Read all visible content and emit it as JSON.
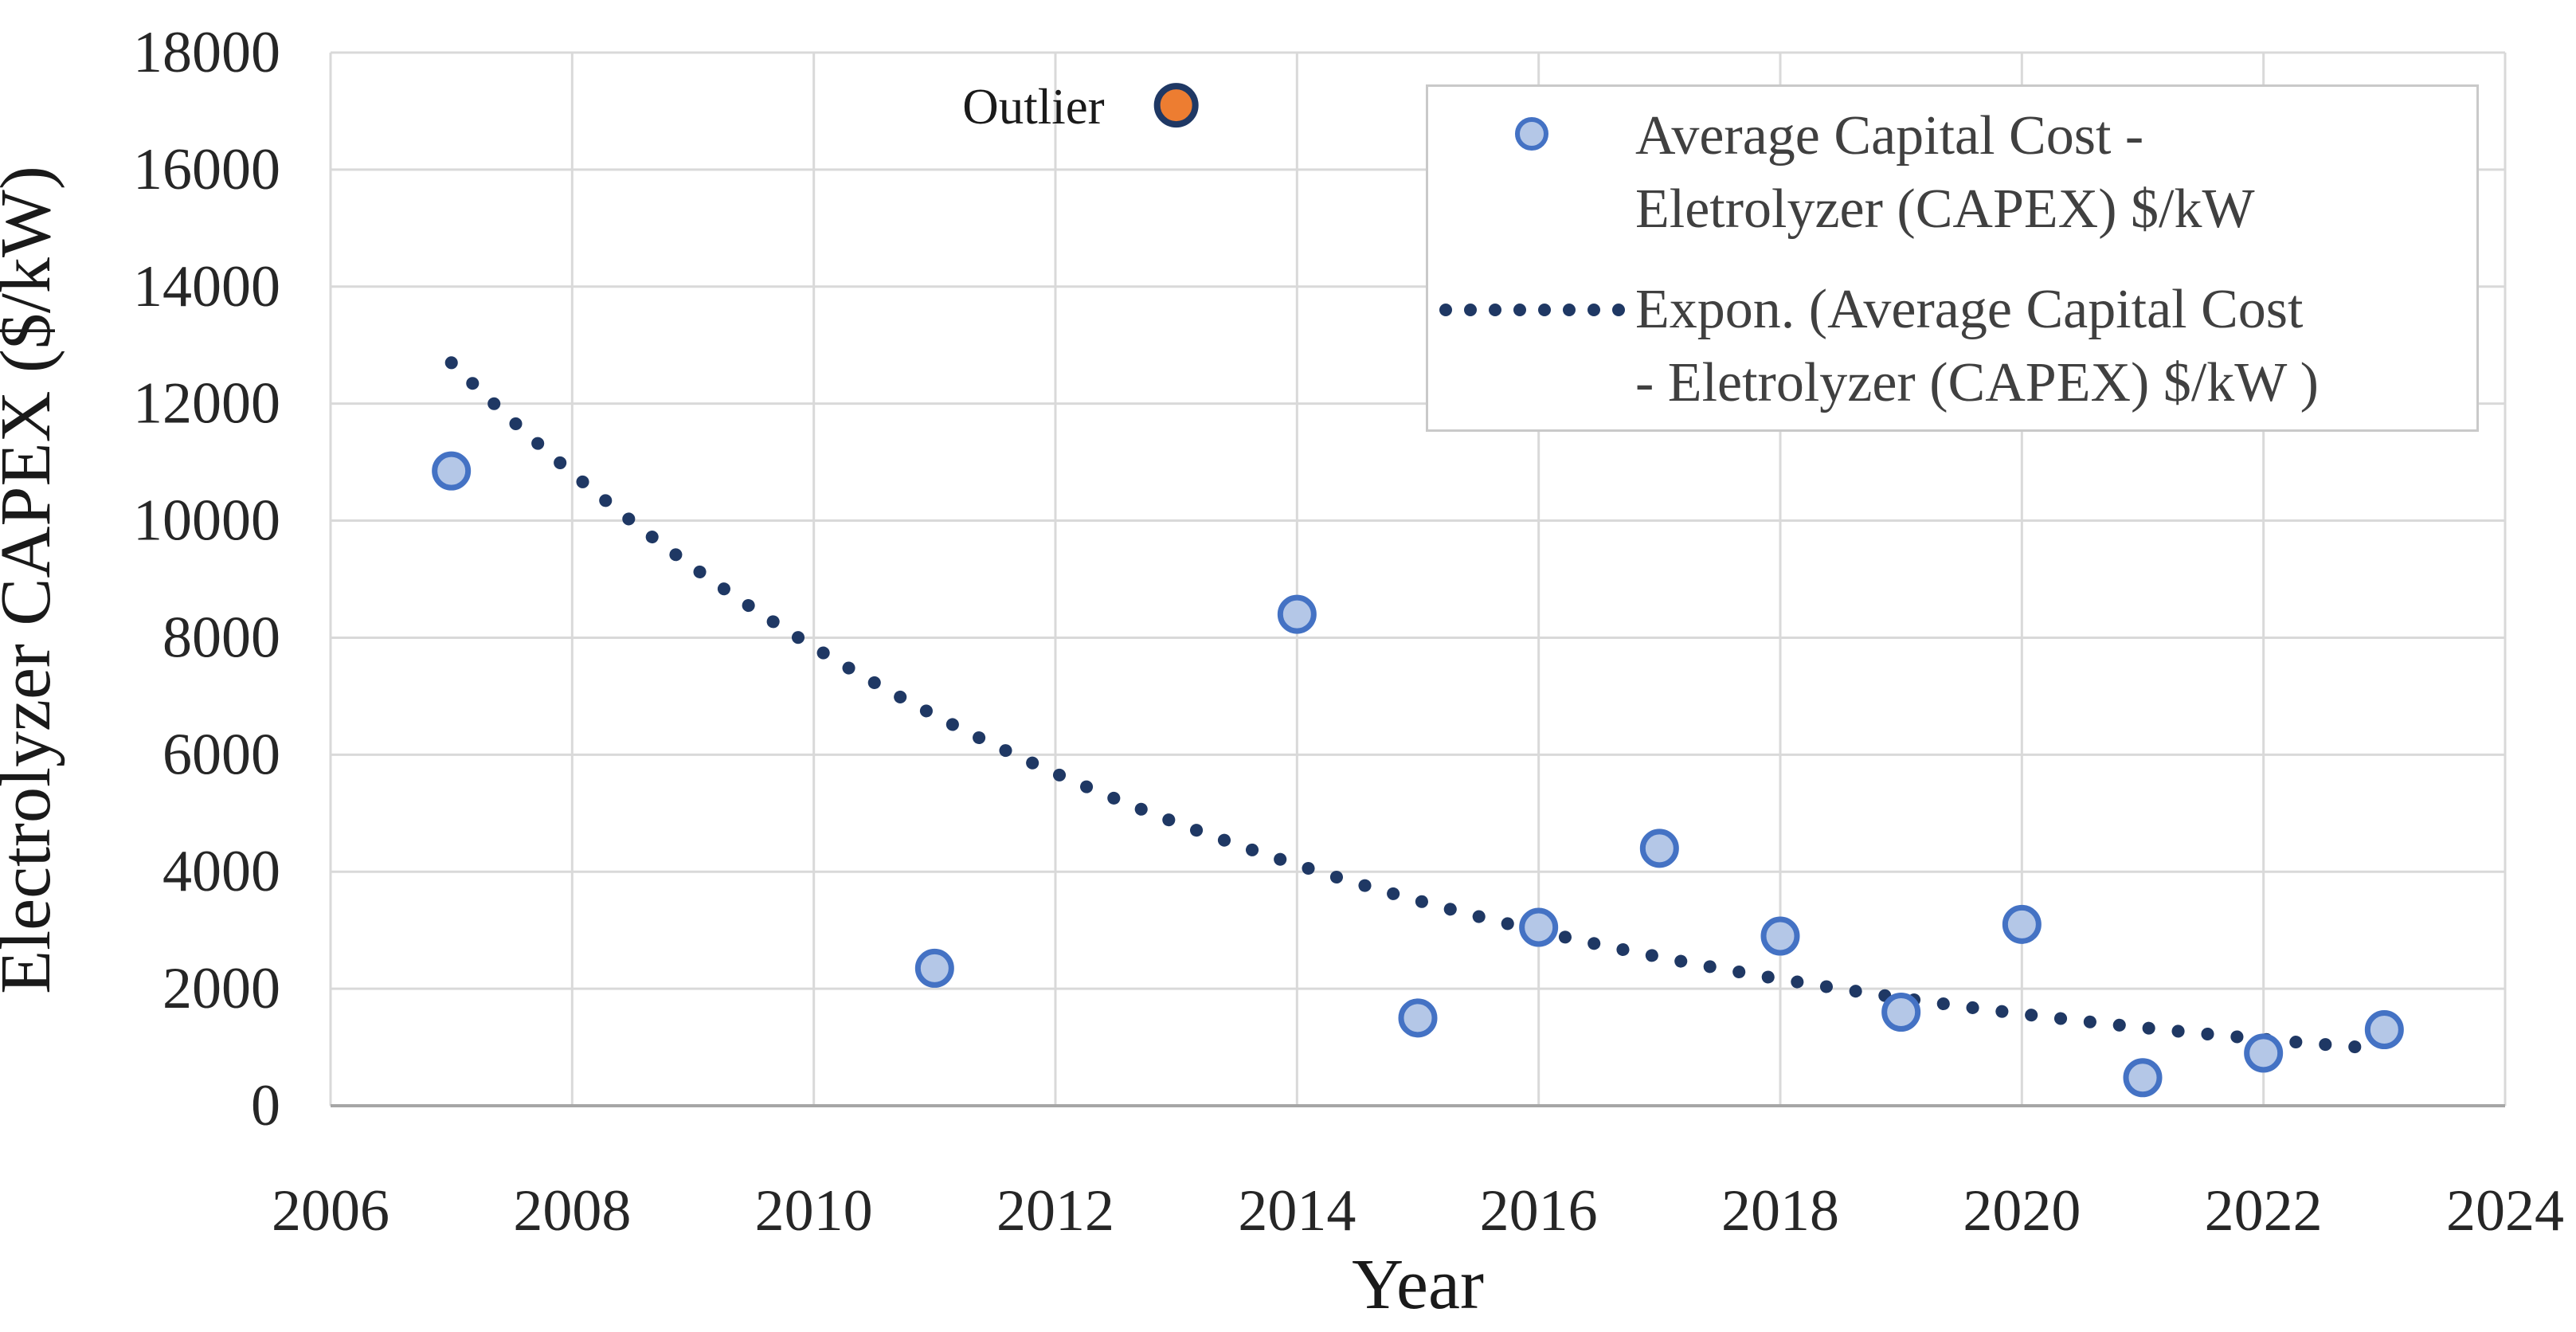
{
  "chart_data": {
    "type": "scatter",
    "title": "",
    "xlabel": "Year",
    "ylabel": "Electrolyzer CAPEX ($/kW)",
    "xlim": [
      2006,
      2024
    ],
    "ylim": [
      0,
      18000
    ],
    "x_ticks": [
      2006,
      2008,
      2010,
      2012,
      2014,
      2016,
      2018,
      2020,
      2022,
      2024
    ],
    "y_ticks": [
      0,
      2000,
      4000,
      6000,
      8000,
      10000,
      12000,
      14000,
      16000,
      18000
    ],
    "grid": true,
    "series": [
      {
        "name": "Average Capital Cost - Eletrolyzer (CAPEX) $/kW",
        "type": "scatter",
        "x": [
          2007,
          2011,
          2014,
          2015,
          2016,
          2017,
          2018,
          2019,
          2020,
          2021,
          2022,
          2023
        ],
        "y": [
          10850,
          2350,
          8400,
          1500,
          3050,
          4400,
          2900,
          1600,
          3100,
          480,
          900,
          1300
        ]
      },
      {
        "name": "Outlier",
        "type": "scatter",
        "x": [
          2013
        ],
        "y": [
          17100
        ]
      },
      {
        "name": "Expon. (Average Capital Cost - Eletrolyzer (CAPEX) $/kW )",
        "type": "trendline-exponential",
        "start_x": 2007,
        "end_x": 2022.8,
        "start_y": 12700,
        "end_y": 1000
      }
    ],
    "annotation": {
      "text": "Outlier",
      "x": 2013,
      "y": 17100
    },
    "legend": {
      "position": "top-right",
      "entries": [
        {
          "marker": "scatter-circle",
          "lines": [
            "Average Capital Cost -",
            "Eletrolyzer (CAPEX) $/kW"
          ]
        },
        {
          "marker": "dotted-line",
          "lines": [
            "Expon. (Average Capital Cost",
            "- Eletrolyzer (CAPEX) $/kW )"
          ]
        }
      ]
    }
  },
  "colors": {
    "scatter_fill": "#b4c7e7",
    "scatter_stroke": "#4472c4",
    "trendline": "#1f3864",
    "outlier_fill": "#ed7d31",
    "outlier_stroke": "#1f3864",
    "gridline": "#d9d9d9",
    "axis_line": "#a6a6a6",
    "background": "#ffffff"
  }
}
